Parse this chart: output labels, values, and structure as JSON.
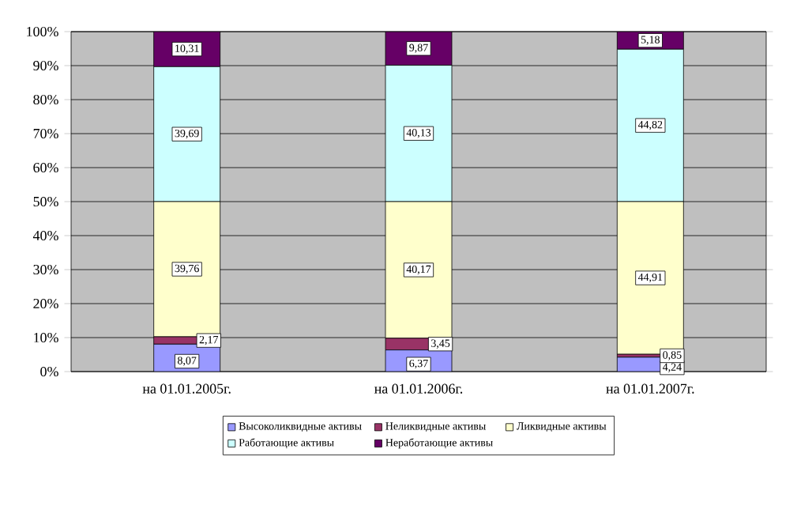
{
  "chart_data": {
    "type": "bar",
    "stacked": true,
    "categories": [
      "на 01.01.2005г.",
      "на 01.01.2006г.",
      "на 01.01.2007г."
    ],
    "series": [
      {
        "name": "Высоколиквидные активы",
        "color": "#9999ff",
        "values": [
          8.07,
          6.37,
          4.24
        ],
        "value_labels": [
          "8,07",
          "6,37",
          "4,24"
        ]
      },
      {
        "name": "Неликвидные активы",
        "color": "#993366",
        "values": [
          2.17,
          3.45,
          0.85
        ],
        "value_labels": [
          "2,17",
          "3,45",
          "0,85"
        ]
      },
      {
        "name": "Ликвидные активы",
        "color": "#ffffcc",
        "values": [
          39.76,
          40.17,
          44.91
        ],
        "value_labels": [
          "39,76",
          "40,17",
          "44,91"
        ]
      },
      {
        "name": "Работающие активы",
        "color": "#ccffff",
        "values": [
          39.69,
          40.13,
          44.82
        ],
        "value_labels": [
          "39,69",
          "40,13",
          "44,82"
        ]
      },
      {
        "name": "Неработающие активы",
        "color": "#660066",
        "values": [
          10.31,
          9.87,
          5.18
        ],
        "value_labels": [
          "10,31",
          "9,87",
          "5,18"
        ]
      }
    ],
    "ylim": [
      0,
      100
    ],
    "yticks": [
      {
        "value": 0,
        "label": "0%"
      },
      {
        "value": 10,
        "label": "10%"
      },
      {
        "value": 20,
        "label": "20%"
      },
      {
        "value": 30,
        "label": "30%"
      },
      {
        "value": 40,
        "label": "40%"
      },
      {
        "value": 50,
        "label": "50%"
      },
      {
        "value": 60,
        "label": "60%"
      },
      {
        "value": 70,
        "label": "70%"
      },
      {
        "value": 80,
        "label": "80%"
      },
      {
        "value": 90,
        "label": "90%"
      },
      {
        "value": 100,
        "label": "100%"
      }
    ],
    "grid": "y",
    "legend": "bottom"
  }
}
